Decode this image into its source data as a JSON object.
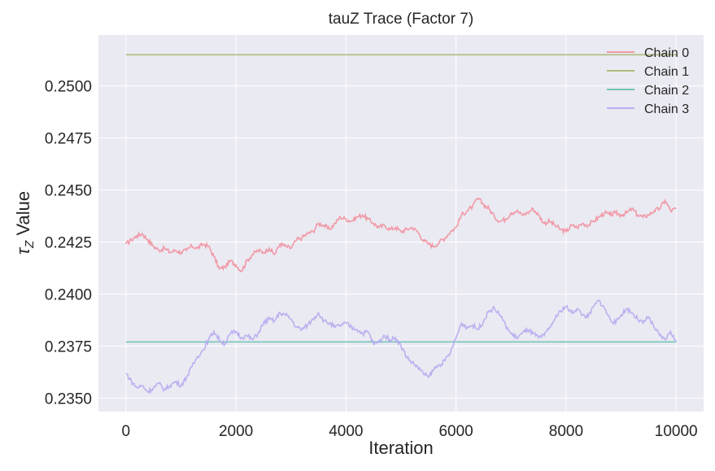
{
  "chart_data": {
    "type": "line",
    "title": "tauZ Trace (Factor 7)",
    "xlabel": "Iteration",
    "ylabel_symbol": "τ",
    "ylabel_sub": "Z",
    "ylabel_text": " Value",
    "xlim": [
      -500,
      10500
    ],
    "ylim": [
      0.23435,
      0.25245
    ],
    "xticks": [
      0,
      2000,
      4000,
      6000,
      8000,
      10000
    ],
    "xtick_labels": [
      "0",
      "2000",
      "4000",
      "6000",
      "8000",
      "10000"
    ],
    "yticks": [
      0.235,
      0.2375,
      0.24,
      0.2425,
      0.245,
      0.2475,
      0.25
    ],
    "ytick_labels": [
      "0.2350",
      "0.2375",
      "0.2400",
      "0.2425",
      "0.2450",
      "0.2475",
      "0.2500"
    ],
    "grid": true,
    "legend_position": "top-right",
    "series": [
      {
        "name": "Chain 0",
        "color": "#f28b9a",
        "x": [
          0,
          100,
          200,
          300,
          400,
          500,
          600,
          700,
          800,
          900,
          1000,
          1100,
          1200,
          1300,
          1400,
          1500,
          1600,
          1700,
          1800,
          1900,
          2000,
          2100,
          2200,
          2300,
          2400,
          2500,
          2600,
          2700,
          2800,
          2900,
          3000,
          3100,
          3200,
          3300,
          3400,
          3500,
          3600,
          3700,
          3800,
          3900,
          4000,
          4100,
          4200,
          4300,
          4400,
          4500,
          4600,
          4700,
          4800,
          4900,
          5000,
          5100,
          5200,
          5300,
          5400,
          5500,
          5600,
          5700,
          5800,
          5900,
          6000,
          6100,
          6200,
          6300,
          6400,
          6500,
          6600,
          6700,
          6800,
          6900,
          7000,
          7100,
          7200,
          7300,
          7400,
          7500,
          7600,
          7700,
          7800,
          7900,
          8000,
          8100,
          8200,
          8300,
          8400,
          8500,
          8600,
          8700,
          8800,
          8900,
          9000,
          9100,
          9200,
          9300,
          9400,
          9500,
          9600,
          9700,
          9800,
          9900,
          10000
        ],
        "values": [
          0.2424,
          0.2426,
          0.2428,
          0.2429,
          0.2426,
          0.2423,
          0.2421,
          0.2422,
          0.242,
          0.2421,
          0.242,
          0.2421,
          0.2423,
          0.2422,
          0.2424,
          0.2423,
          0.2418,
          0.2412,
          0.2413,
          0.2416,
          0.2414,
          0.2411,
          0.2416,
          0.2419,
          0.2421,
          0.242,
          0.2422,
          0.2419,
          0.2424,
          0.2423,
          0.2422,
          0.2426,
          0.2427,
          0.2429,
          0.243,
          0.2434,
          0.2433,
          0.2431,
          0.2434,
          0.2437,
          0.2436,
          0.2435,
          0.2437,
          0.2438,
          0.2436,
          0.2434,
          0.2432,
          0.2433,
          0.2431,
          0.2432,
          0.243,
          0.2431,
          0.2432,
          0.243,
          0.2426,
          0.2424,
          0.2423,
          0.2425,
          0.2427,
          0.243,
          0.2432,
          0.2438,
          0.244,
          0.2442,
          0.2446,
          0.2443,
          0.2441,
          0.2437,
          0.2435,
          0.2436,
          0.2439,
          0.244,
          0.2438,
          0.2439,
          0.2441,
          0.2438,
          0.2434,
          0.2435,
          0.2433,
          0.2431,
          0.243,
          0.2433,
          0.2432,
          0.2434,
          0.2433,
          0.2435,
          0.2437,
          0.2439,
          0.2438,
          0.2439,
          0.2438,
          0.2439,
          0.2441,
          0.2438,
          0.2437,
          0.2438,
          0.244,
          0.2441,
          0.2445,
          0.244,
          0.2441
        ]
      },
      {
        "name": "Chain 1",
        "color": "#a5b46a",
        "x": [
          0,
          10000
        ],
        "values": [
          0.2515,
          0.2515
        ]
      },
      {
        "name": "Chain 2",
        "color": "#63bfae",
        "x": [
          0,
          10000
        ],
        "values": [
          0.2377,
          0.2377
        ]
      },
      {
        "name": "Chain 3",
        "color": "#b3a6f0",
        "x": [
          0,
          100,
          200,
          300,
          400,
          500,
          600,
          700,
          800,
          900,
          1000,
          1100,
          1200,
          1300,
          1400,
          1500,
          1600,
          1700,
          1800,
          1900,
          2000,
          2100,
          2200,
          2300,
          2400,
          2500,
          2600,
          2700,
          2800,
          2900,
          3000,
          3100,
          3200,
          3300,
          3400,
          3500,
          3600,
          3700,
          3800,
          3900,
          4000,
          4100,
          4200,
          4300,
          4400,
          4500,
          4600,
          4700,
          4800,
          4900,
          5000,
          5100,
          5200,
          5300,
          5400,
          5500,
          5600,
          5700,
          5800,
          5900,
          6000,
          6100,
          6200,
          6300,
          6400,
          6500,
          6600,
          6700,
          6800,
          6900,
          7000,
          7100,
          7200,
          7300,
          7400,
          7500,
          7600,
          7700,
          7800,
          7900,
          8000,
          8100,
          8200,
          8300,
          8400,
          8500,
          8600,
          8700,
          8800,
          8900,
          9000,
          9100,
          9200,
          9300,
          9400,
          9500,
          9600,
          9700,
          9800,
          9900,
          10000
        ],
        "values": [
          0.2362,
          0.2358,
          0.2355,
          0.2356,
          0.2353,
          0.2355,
          0.2357,
          0.2354,
          0.2356,
          0.2358,
          0.2356,
          0.236,
          0.2365,
          0.237,
          0.2373,
          0.2378,
          0.2382,
          0.2378,
          0.2376,
          0.2381,
          0.2382,
          0.2379,
          0.238,
          0.2378,
          0.2381,
          0.2386,
          0.2388,
          0.2387,
          0.2391,
          0.239,
          0.2388,
          0.2384,
          0.2383,
          0.2385,
          0.2388,
          0.2391,
          0.2387,
          0.2386,
          0.2384,
          0.2385,
          0.2386,
          0.2384,
          0.2383,
          0.2381,
          0.2382,
          0.2376,
          0.2377,
          0.238,
          0.2378,
          0.2379,
          0.2375,
          0.237,
          0.2367,
          0.2365,
          0.2362,
          0.236,
          0.2364,
          0.2366,
          0.2368,
          0.2372,
          0.2379,
          0.2386,
          0.2384,
          0.2385,
          0.2383,
          0.2387,
          0.2392,
          0.2393,
          0.239,
          0.2385,
          0.2381,
          0.2379,
          0.2381,
          0.2383,
          0.2381,
          0.2379,
          0.238,
          0.2384,
          0.2388,
          0.2392,
          0.2394,
          0.2391,
          0.2393,
          0.239,
          0.2389,
          0.2394,
          0.2397,
          0.2393,
          0.2388,
          0.2386,
          0.239,
          0.2393,
          0.2391,
          0.2388,
          0.2386,
          0.2389,
          0.2384,
          0.238,
          0.2378,
          0.2382,
          0.2377
        ]
      }
    ]
  }
}
